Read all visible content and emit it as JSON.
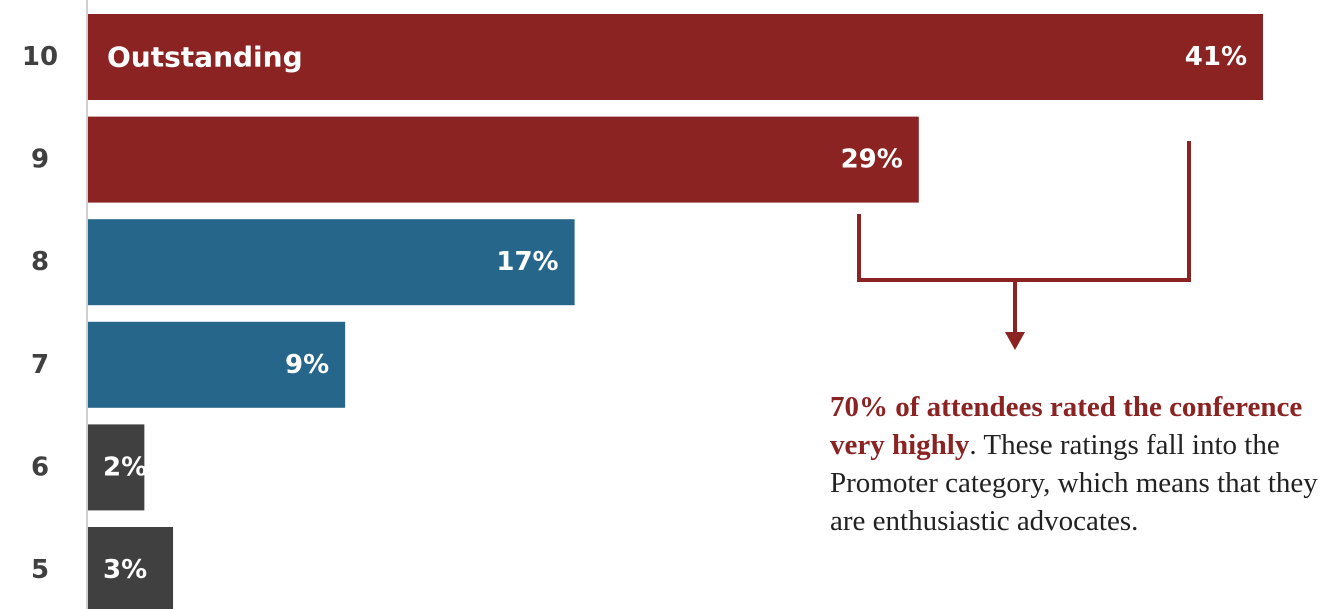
{
  "chart_data": {
    "type": "bar",
    "orientation": "horizontal",
    "categories": [
      "10",
      "9",
      "8",
      "7",
      "6",
      "5"
    ],
    "values": [
      41,
      29,
      17,
      9,
      2,
      3
    ],
    "value_labels": [
      "41%",
      "29%",
      "17%",
      "9%",
      "2%",
      "3%"
    ],
    "bar_text": {
      "0": "Outstanding"
    },
    "xlim": [
      0,
      41
    ],
    "title": "",
    "xlabel": "",
    "ylabel": "",
    "grid": false,
    "colors": {
      "promoter": "#8B2323",
      "passive": "#26668A",
      "detractor": "#404040"
    },
    "bar_groups": [
      "promoter",
      "promoter",
      "passive",
      "passive",
      "detractor",
      "detractor"
    ]
  },
  "annotation": {
    "highlight": "70% of attendees rated the conference very highly",
    "rest": ". These ratings fall into the Promoter category, which means that they are enthusiastic advocates.",
    "arrow_color": "#8B2323"
  }
}
